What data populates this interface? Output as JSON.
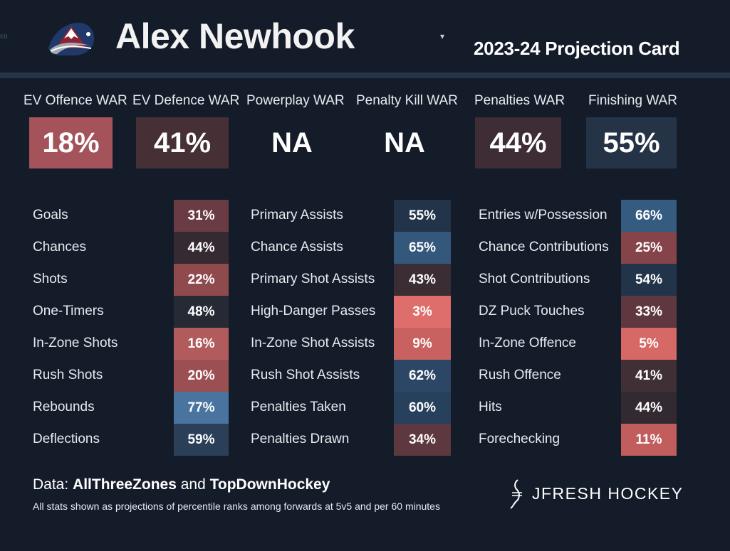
{
  "header": {
    "fragment_text": "co",
    "player_name": "Alex Newhook",
    "dropdown_caret": "▾",
    "card_title": "2023-24 Projection Card",
    "logo_icon": "colorado-avalanche-logo"
  },
  "war": [
    {
      "label": "EV Offence WAR",
      "value": "18%",
      "color": "#a4535a"
    },
    {
      "label": "EV Defence WAR",
      "value": "41%",
      "color": "#463036"
    },
    {
      "label": "Powerplay WAR",
      "value": "NA",
      "color": "transparent"
    },
    {
      "label": "Penalty Kill WAR",
      "value": "NA",
      "color": "transparent"
    },
    {
      "label": "Penalties WAR",
      "value": "44%",
      "color": "#3e2d35"
    },
    {
      "label": "Finishing WAR",
      "value": "55%",
      "color": "#253346"
    }
  ],
  "stats": [
    [
      {
        "label": "Goals",
        "value": "31%",
        "color": "#6b3b43"
      },
      {
        "label": "Chances",
        "value": "44%",
        "color": "#352a32"
      },
      {
        "label": "Shots",
        "value": "22%",
        "color": "#8f4a4e"
      },
      {
        "label": "One-Timers",
        "value": "48%",
        "color": "#252a35"
      },
      {
        "label": "In-Zone Shots",
        "value": "16%",
        "color": "#b15b5d"
      },
      {
        "label": "Rush Shots",
        "value": "20%",
        "color": "#9c4f53"
      },
      {
        "label": "Rebounds",
        "value": "77%",
        "color": "#4a74a0"
      },
      {
        "label": "Deflections",
        "value": "59%",
        "color": "#2b3f58"
      }
    ],
    [
      {
        "label": "Primary Assists",
        "value": "55%",
        "color": "#22344a"
      },
      {
        "label": "Chance Assists",
        "value": "65%",
        "color": "#34577c"
      },
      {
        "label": "Primary Shot Assists",
        "value": "43%",
        "color": "#3a2d34"
      },
      {
        "label": "High-Danger Passes",
        "value": "3%",
        "color": "#de6e6b"
      },
      {
        "label": "In-Zone Shot Assists",
        "value": "9%",
        "color": "#c8615f"
      },
      {
        "label": "Rush Shot Assists",
        "value": "62%",
        "color": "#2c4765"
      },
      {
        "label": "Penalties Taken",
        "value": "60%",
        "color": "#27405c"
      },
      {
        "label": "Penalties Drawn",
        "value": "34%",
        "color": "#5e383f"
      }
    ],
    [
      {
        "label": "Entries w/Possession",
        "value": "66%",
        "color": "#365b80"
      },
      {
        "label": "Chance Contributions",
        "value": "25%",
        "color": "#854449"
      },
      {
        "label": "Shot Contributions",
        "value": "54%",
        "color": "#22344a"
      },
      {
        "label": "DZ Puck Touches",
        "value": "33%",
        "color": "#5f383f"
      },
      {
        "label": "In-Zone Offence",
        "value": "5%",
        "color": "#d66865"
      },
      {
        "label": "Rush Offence",
        "value": "41%",
        "color": "#412f36"
      },
      {
        "label": "Hits",
        "value": "44%",
        "color": "#332a31"
      },
      {
        "label": "Forechecking",
        "value": "11%",
        "color": "#c25d5e"
      }
    ]
  ],
  "footer": {
    "source_prefix": "Data: ",
    "source_1": "AllThreeZones",
    "source_and": " and ",
    "source_2": "TopDownHockey",
    "note": "All stats shown as projections of percentile ranks among forwards at 5v5 and per 60 minutes",
    "brand": "JFRESH HOCKEY",
    "brand_icon": "jfresh-logo-icon"
  }
}
